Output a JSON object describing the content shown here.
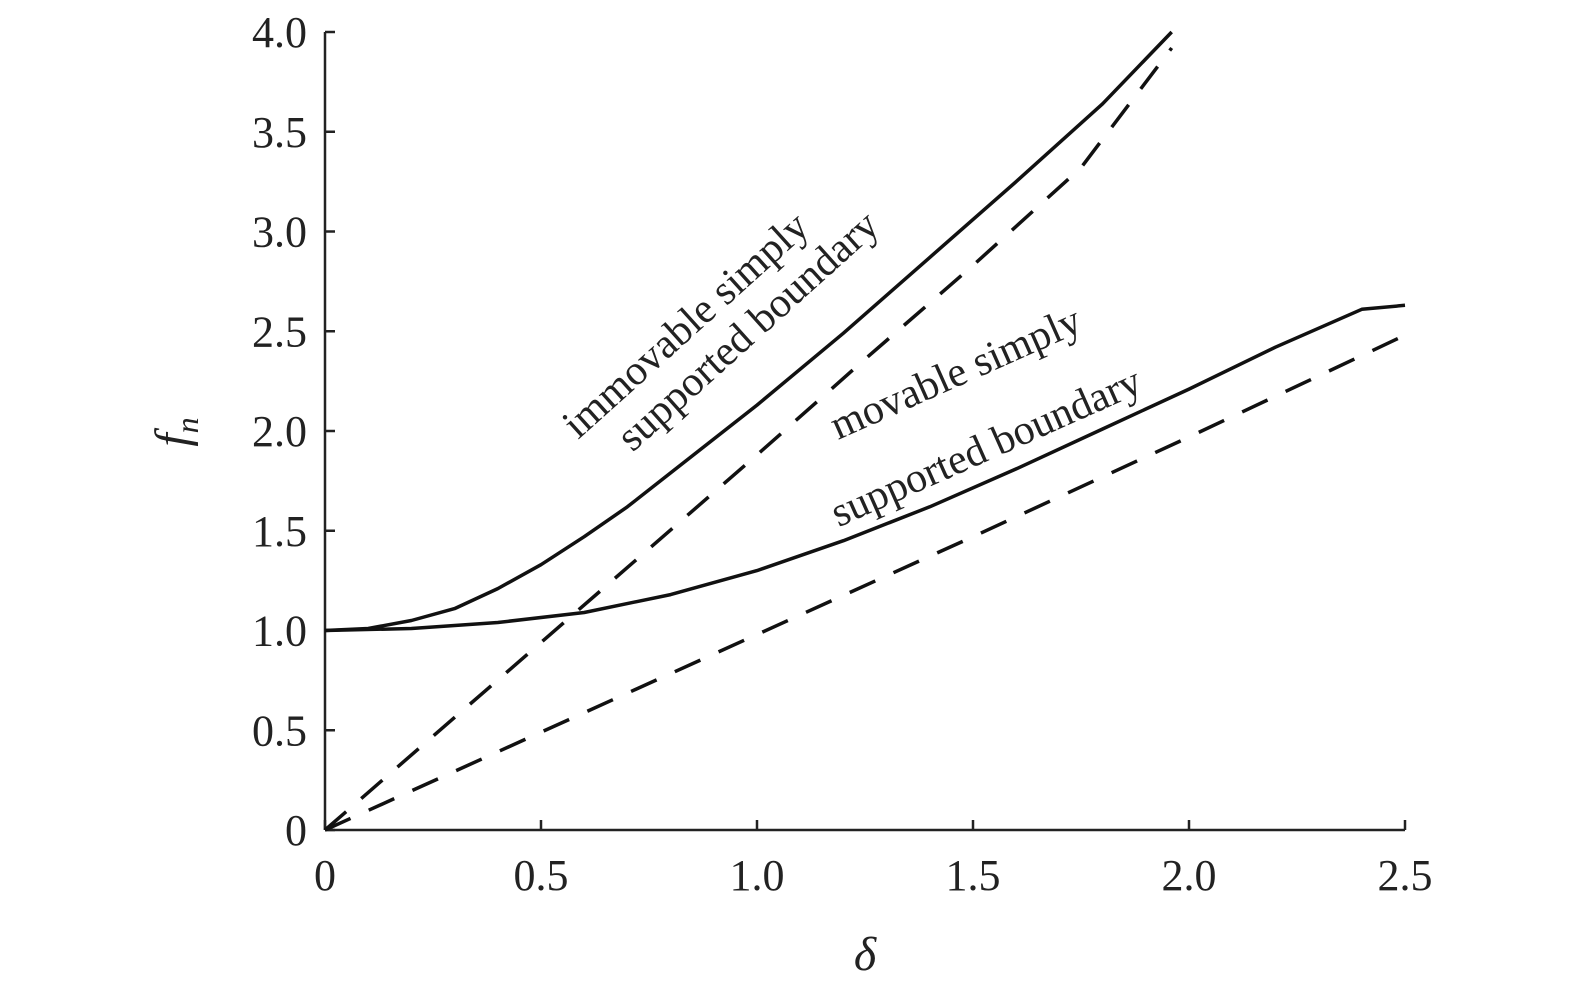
{
  "chart_data": {
    "type": "line",
    "xlabel": "δ",
    "ylabel": "f",
    "ylabel_sub": "n",
    "xlim": [
      0,
      2.5
    ],
    "ylim": [
      0,
      4.0
    ],
    "x_ticks": [
      0,
      0.5,
      1.0,
      1.5,
      2.0,
      2.5
    ],
    "x_tick_labels": [
      "0",
      "0.5",
      "1.0",
      "1.5",
      "2.0",
      "2.5"
    ],
    "y_ticks": [
      0,
      0.5,
      1.0,
      1.5,
      2.0,
      2.5,
      3.0,
      3.5,
      4.0
    ],
    "y_tick_labels": [
      "0",
      "0.5",
      "1.0",
      "1.5",
      "2.0",
      "2.5",
      "3.0",
      "3.5",
      "4.0"
    ],
    "grid": false,
    "legend": "none",
    "annotations": [
      {
        "lines": [
          "immovable simply",
          "supported boundary"
        ],
        "rotation_deg": -42
      },
      {
        "lines": [
          "movable simply",
          "supported boundary"
        ],
        "rotation_deg": -24
      }
    ],
    "series": [
      {
        "style": "solid",
        "x": [
          0,
          0.1,
          0.2,
          0.3,
          0.4,
          0.5,
          0.6,
          0.7,
          0.8,
          0.9,
          1.0,
          1.2,
          1.4,
          1.6,
          1.8,
          1.96
        ],
        "y": [
          1.0,
          1.01,
          1.05,
          1.11,
          1.21,
          1.33,
          1.47,
          1.62,
          1.79,
          1.96,
          2.13,
          2.49,
          2.87,
          3.25,
          3.64,
          4.0
        ]
      },
      {
        "style": "dashed",
        "x": [
          0,
          0.25,
          0.5,
          0.75,
          1.0,
          1.25,
          1.5,
          1.75,
          1.96
        ],
        "y": [
          0,
          0.47,
          0.94,
          1.41,
          1.88,
          2.36,
          2.83,
          3.32,
          3.92
        ]
      },
      {
        "style": "solid",
        "x": [
          0,
          0.2,
          0.4,
          0.6,
          0.8,
          1.0,
          1.2,
          1.4,
          1.6,
          1.8,
          2.0,
          2.2,
          2.4,
          2.5
        ],
        "y": [
          1.0,
          1.01,
          1.04,
          1.09,
          1.18,
          1.3,
          1.45,
          1.62,
          1.81,
          2.01,
          2.21,
          2.42,
          2.61,
          2.63
        ]
      },
      {
        "style": "dashed",
        "x": [
          0,
          0.5,
          1.0,
          1.5,
          2.0,
          2.5
        ],
        "y": [
          0,
          0.49,
          0.98,
          1.47,
          1.97,
          2.48
        ]
      }
    ]
  }
}
